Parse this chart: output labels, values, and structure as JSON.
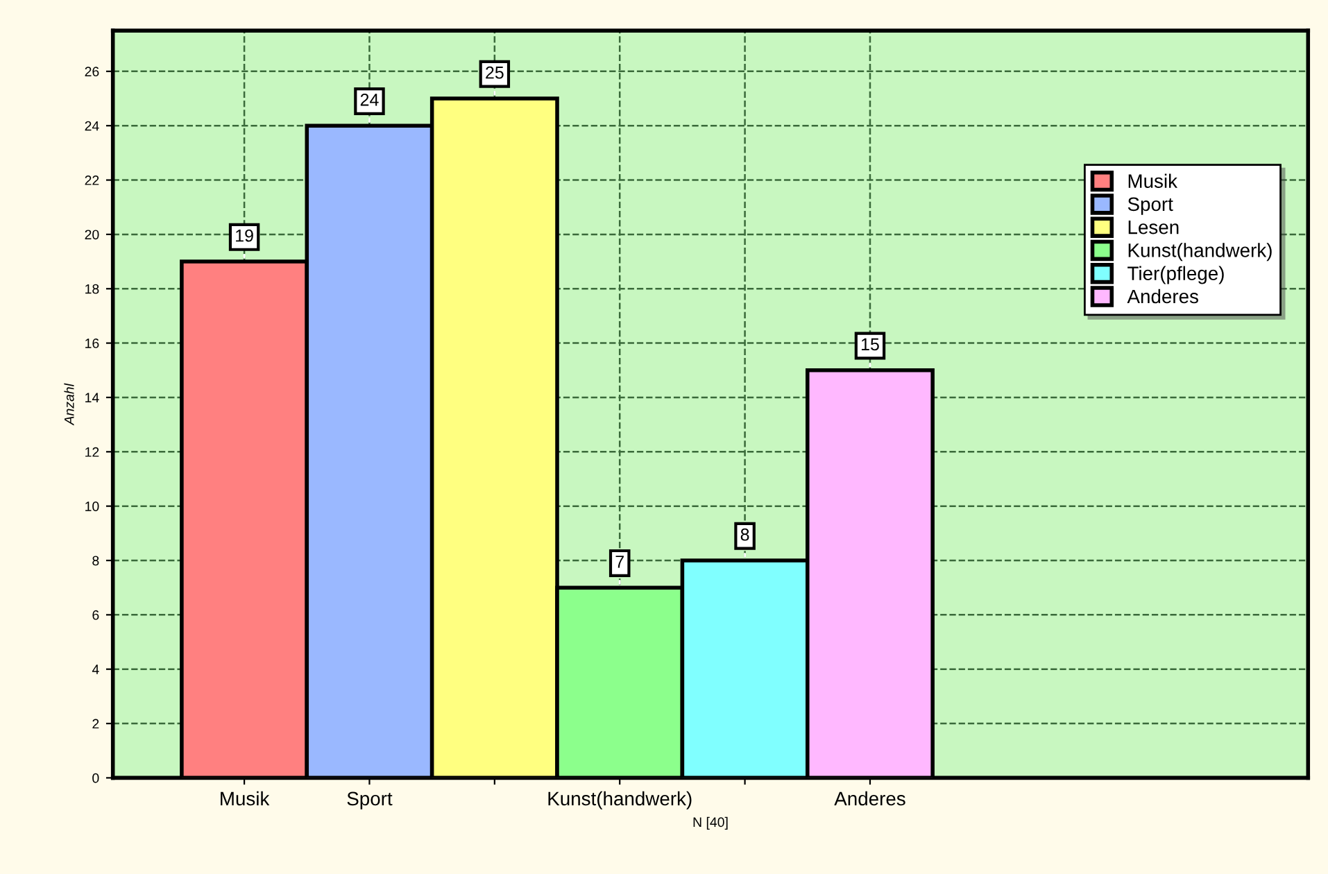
{
  "chart_data": {
    "type": "bar",
    "ylabel": "Anzahl",
    "xlabel": "N [40]",
    "categories": [
      "Musik",
      "Sport",
      null,
      "Kunst(handwerk)",
      null,
      "Anderes"
    ],
    "series": [
      {
        "name": "Musik",
        "color": "#ff8080",
        "values": [
          19,
          null,
          null,
          null,
          null,
          null
        ]
      },
      {
        "name": "Sport",
        "color": "#9ab8ff",
        "values": [
          null,
          24,
          null,
          null,
          null,
          null
        ]
      },
      {
        "name": "Lesen",
        "color": "#ffff80",
        "values": [
          null,
          null,
          25,
          null,
          null,
          null
        ]
      },
      {
        "name": "Kunst(handwerk)",
        "color": "#8cff8c",
        "values": [
          null,
          null,
          null,
          7,
          null,
          null
        ]
      },
      {
        "name": "Tier(pflege)",
        "color": "#80ffff",
        "values": [
          null,
          null,
          null,
          null,
          8,
          null
        ]
      },
      {
        "name": "Anderes",
        "color": "#ffb8ff",
        "values": [
          null,
          null,
          null,
          null,
          null,
          15
        ]
      }
    ],
    "ylim": [
      0,
      27.5
    ],
    "yticks": [
      0,
      2,
      4,
      6,
      8,
      10,
      12,
      14,
      16,
      18,
      20,
      22,
      24,
      26
    ],
    "grid": true,
    "line_style": "dashed",
    "legend": "right",
    "data_labels": true
  }
}
